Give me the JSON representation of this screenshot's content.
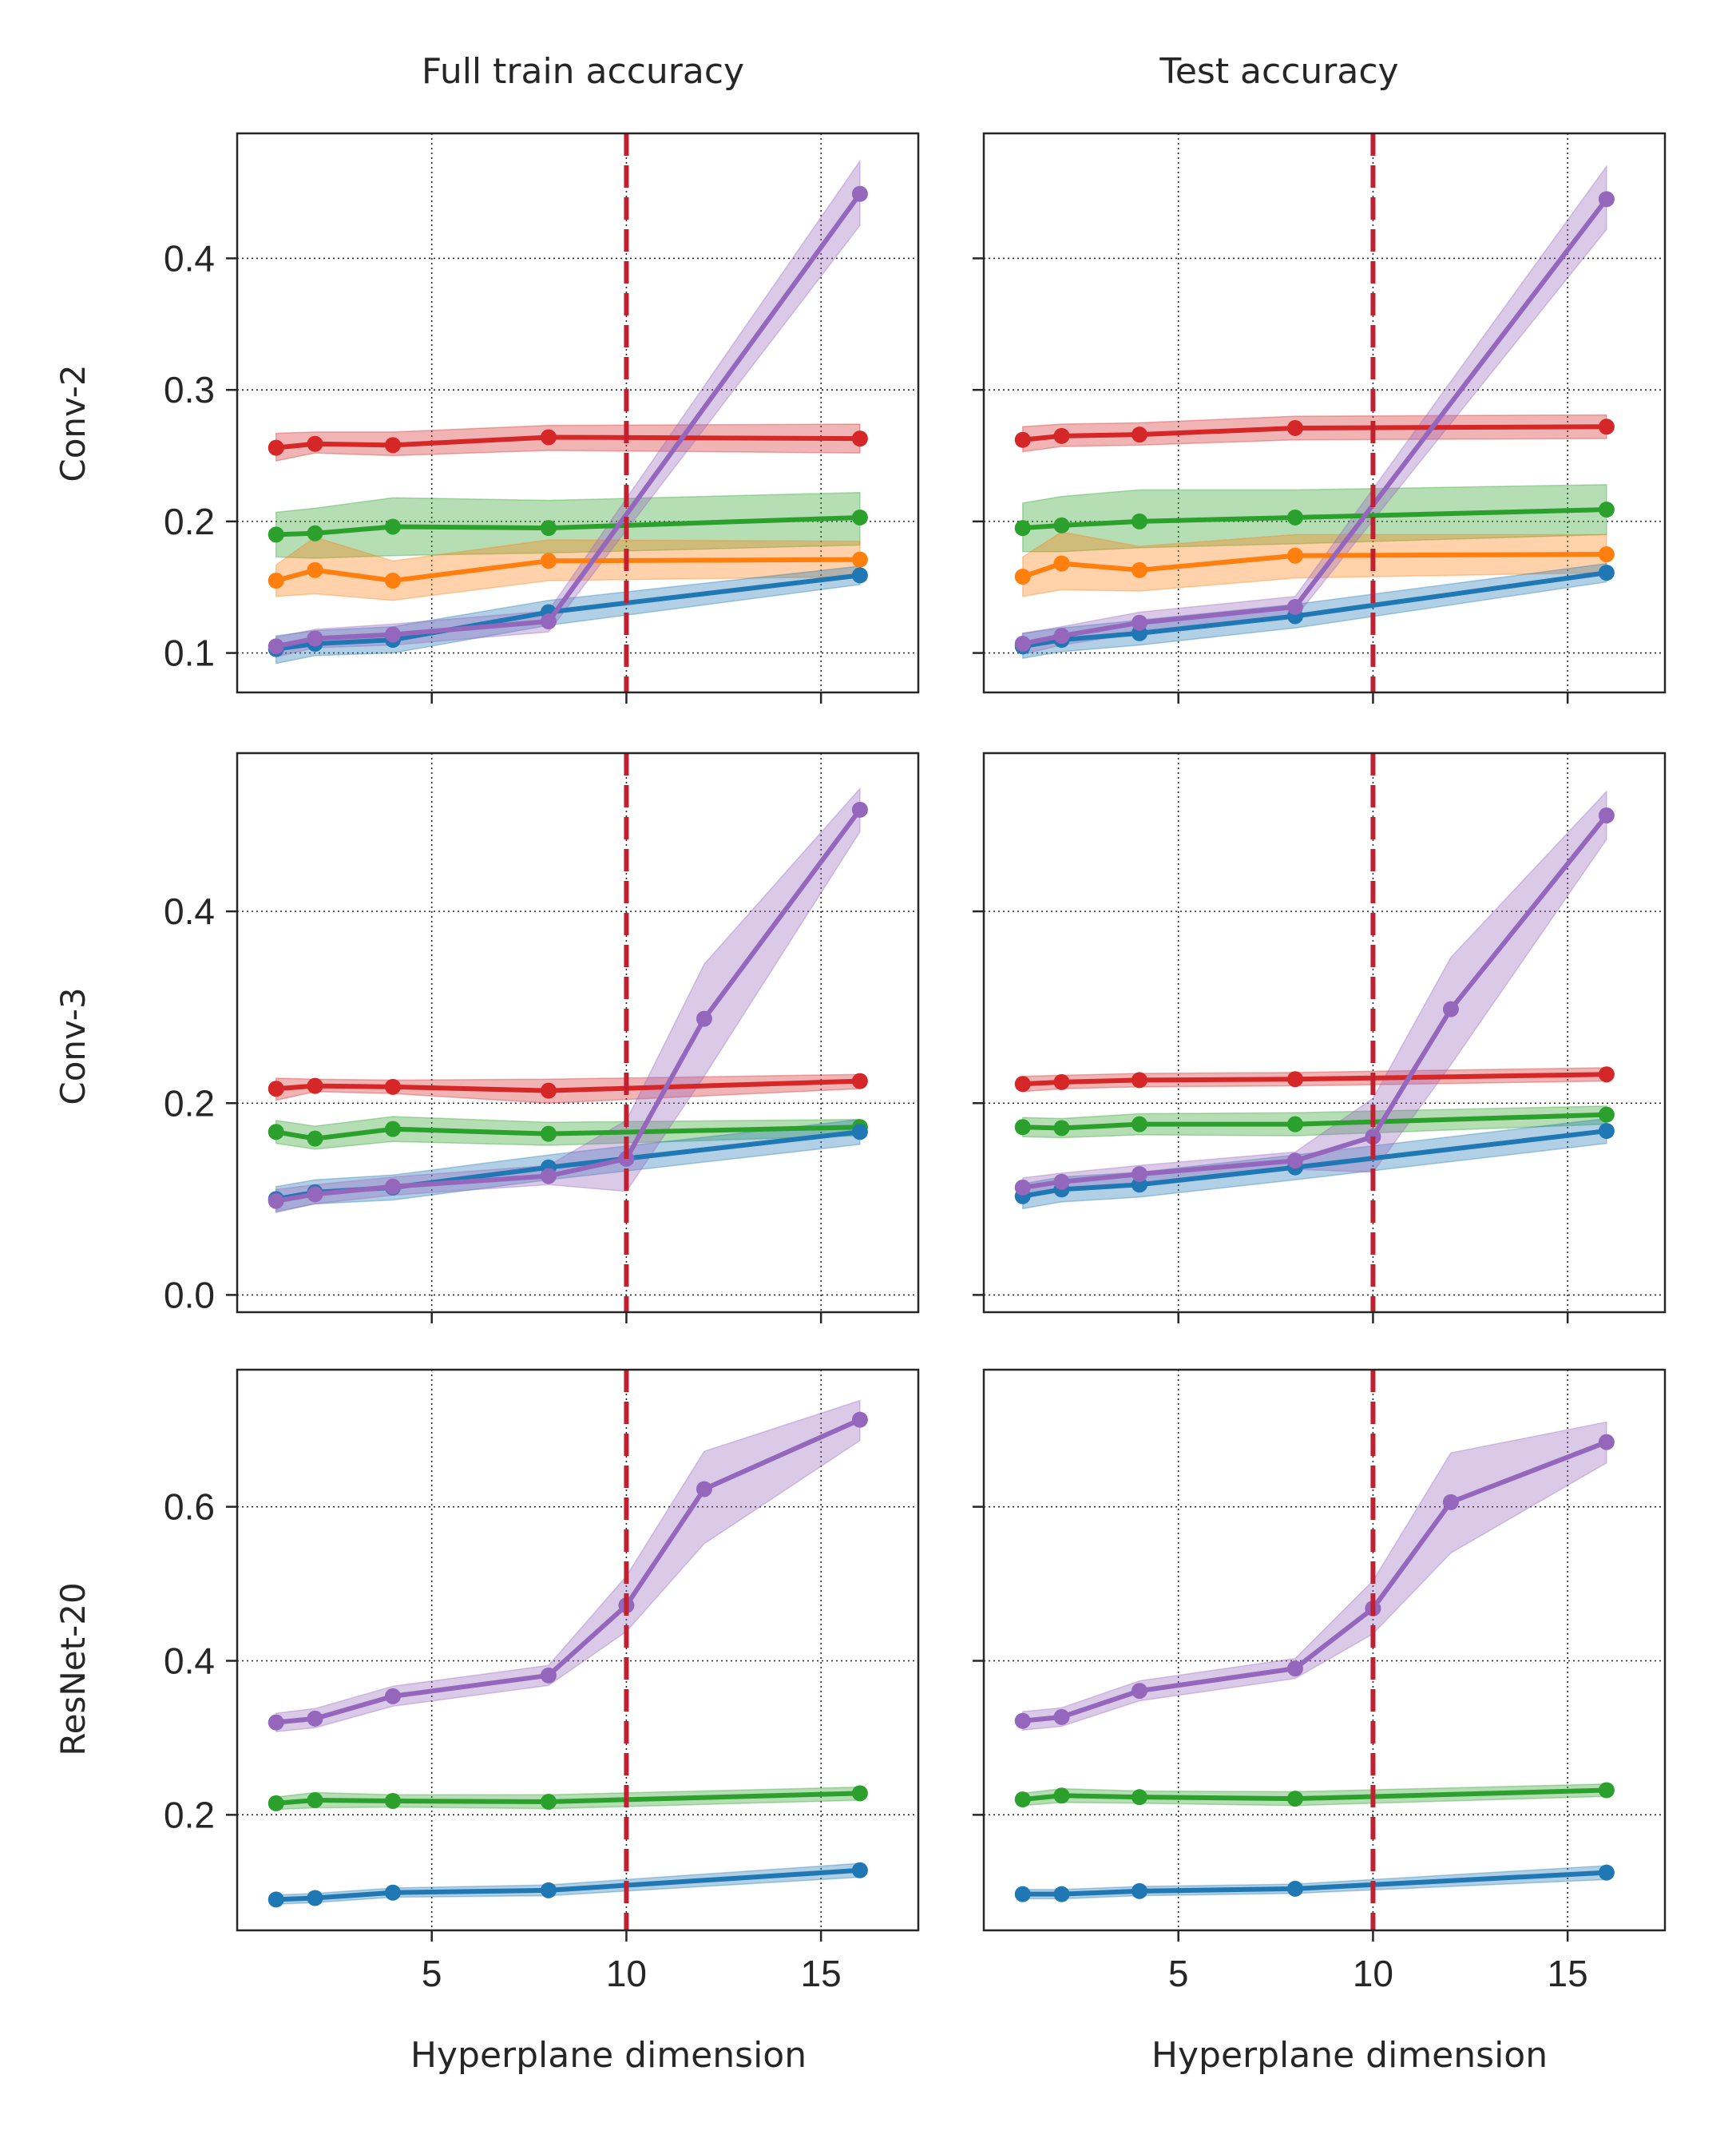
{
  "figure": {
    "column_titles": [
      "Full train accuracy",
      "Test accuracy"
    ],
    "row_labels": [
      "Conv-2",
      "Conv-3",
      "ResNet-20"
    ],
    "xlabel": "Hyperplane dimension",
    "vline_x": 10,
    "series_colors": {
      "red": "#d62728",
      "green": "#2ca02c",
      "orange": "#ff7f0e",
      "blue": "#1f77b4",
      "purple": "#9467bd",
      "vline": "#c0202f"
    }
  },
  "chart_data": [
    {
      "type": "line",
      "panel": "Conv-2 / Full train accuracy",
      "title": "Full train accuracy",
      "ylabel": "Conv-2",
      "xlabel": "",
      "xlim": [
        0,
        17.5
      ],
      "ylim": [
        0.07,
        0.495
      ],
      "xticks": [
        5,
        10,
        15
      ],
      "yticks": [
        0.1,
        0.2,
        0.3,
        0.4
      ],
      "ytick_labels": [
        "0.1",
        "0.2",
        "0.3",
        "0.4"
      ],
      "xtick_labels": [],
      "series": [
        {
          "name": "red",
          "color": "#d62728",
          "x": [
            1,
            2,
            4,
            8,
            16
          ],
          "y": [
            0.256,
            0.259,
            0.258,
            0.264,
            0.263
          ],
          "lower": [
            0.246,
            0.252,
            0.25,
            0.254,
            0.252
          ],
          "upper": [
            0.267,
            0.268,
            0.268,
            0.273,
            0.274
          ]
        },
        {
          "name": "green",
          "color": "#2ca02c",
          "x": [
            1,
            2,
            4,
            8,
            16
          ],
          "y": [
            0.19,
            0.191,
            0.196,
            0.195,
            0.203
          ],
          "lower": [
            0.173,
            0.172,
            0.174,
            0.176,
            0.182
          ],
          "upper": [
            0.207,
            0.21,
            0.218,
            0.216,
            0.222
          ]
        },
        {
          "name": "orange",
          "color": "#ff7f0e",
          "x": [
            1,
            2,
            4,
            8,
            16
          ],
          "y": [
            0.155,
            0.163,
            0.155,
            0.17,
            0.171
          ],
          "lower": [
            0.143,
            0.145,
            0.14,
            0.155,
            0.158
          ],
          "upper": [
            0.167,
            0.188,
            0.17,
            0.186,
            0.185
          ]
        },
        {
          "name": "blue",
          "color": "#1f77b4",
          "x": [
            1,
            2,
            4,
            8,
            16
          ],
          "y": [
            0.103,
            0.107,
            0.11,
            0.131,
            0.159
          ],
          "lower": [
            0.092,
            0.098,
            0.1,
            0.121,
            0.152
          ],
          "upper": [
            0.113,
            0.117,
            0.12,
            0.14,
            0.166
          ]
        },
        {
          "name": "purple",
          "color": "#9467bd",
          "x": [
            1,
            2,
            4,
            8,
            16
          ],
          "y": [
            0.105,
            0.111,
            0.114,
            0.124,
            0.449
          ],
          "lower": [
            0.097,
            0.104,
            0.106,
            0.116,
            0.425
          ],
          "upper": [
            0.112,
            0.118,
            0.122,
            0.132,
            0.474
          ]
        }
      ]
    },
    {
      "type": "line",
      "panel": "Conv-2 / Test accuracy",
      "title": "Test accuracy",
      "ylabel": "",
      "xlabel": "",
      "xlim": [
        0,
        17.5
      ],
      "ylim": [
        0.07,
        0.495
      ],
      "xticks": [
        5,
        10,
        15
      ],
      "yticks": [
        0.1,
        0.2,
        0.3,
        0.4
      ],
      "ytick_labels": [],
      "xtick_labels": [],
      "series": [
        {
          "name": "red",
          "color": "#d62728",
          "x": [
            1,
            2,
            4,
            8,
            16
          ],
          "y": [
            0.262,
            0.265,
            0.266,
            0.271,
            0.272
          ],
          "lower": [
            0.253,
            0.257,
            0.258,
            0.262,
            0.263
          ],
          "upper": [
            0.272,
            0.274,
            0.275,
            0.28,
            0.281
          ]
        },
        {
          "name": "green",
          "color": "#2ca02c",
          "x": [
            1,
            2,
            4,
            8,
            16
          ],
          "y": [
            0.195,
            0.197,
            0.2,
            0.203,
            0.209
          ],
          "lower": [
            0.177,
            0.177,
            0.18,
            0.183,
            0.19
          ],
          "upper": [
            0.214,
            0.219,
            0.224,
            0.224,
            0.228
          ]
        },
        {
          "name": "orange",
          "color": "#ff7f0e",
          "x": [
            1,
            2,
            4,
            8,
            16
          ],
          "y": [
            0.158,
            0.168,
            0.163,
            0.174,
            0.175
          ],
          "lower": [
            0.143,
            0.148,
            0.147,
            0.157,
            0.161
          ],
          "upper": [
            0.173,
            0.192,
            0.181,
            0.19,
            0.19
          ]
        },
        {
          "name": "blue",
          "color": "#1f77b4",
          "x": [
            1,
            2,
            4,
            8,
            16
          ],
          "y": [
            0.105,
            0.11,
            0.115,
            0.128,
            0.161
          ],
          "lower": [
            0.096,
            0.101,
            0.106,
            0.119,
            0.154
          ],
          "upper": [
            0.115,
            0.119,
            0.125,
            0.137,
            0.168
          ]
        },
        {
          "name": "purple",
          "color": "#9467bd",
          "x": [
            1,
            2,
            4,
            8,
            16
          ],
          "y": [
            0.107,
            0.113,
            0.123,
            0.135,
            0.445
          ],
          "lower": [
            0.099,
            0.106,
            0.115,
            0.127,
            0.422
          ],
          "upper": [
            0.115,
            0.12,
            0.131,
            0.143,
            0.47
          ]
        }
      ]
    },
    {
      "type": "line",
      "panel": "Conv-3 / Full train accuracy",
      "title": "",
      "ylabel": "Conv-3",
      "xlabel": "",
      "xlim": [
        0,
        17.5
      ],
      "ylim": [
        -0.018,
        0.565
      ],
      "xticks": [
        5,
        10,
        15
      ],
      "yticks": [
        0.0,
        0.2,
        0.4
      ],
      "ytick_labels": [
        "0.0",
        "0.2",
        "0.4"
      ],
      "xtick_labels": [],
      "series": [
        {
          "name": "red",
          "color": "#d62728",
          "x": [
            1,
            2,
            4,
            8,
            16
          ],
          "y": [
            0.215,
            0.218,
            0.217,
            0.213,
            0.223
          ],
          "lower": [
            0.203,
            0.212,
            0.21,
            0.2,
            0.215
          ],
          "upper": [
            0.226,
            0.225,
            0.224,
            0.225,
            0.23
          ]
        },
        {
          "name": "green",
          "color": "#2ca02c",
          "x": [
            1,
            2,
            4,
            8,
            16
          ],
          "y": [
            0.17,
            0.163,
            0.173,
            0.168,
            0.175
          ],
          "lower": [
            0.158,
            0.152,
            0.16,
            0.156,
            0.166
          ],
          "upper": [
            0.182,
            0.176,
            0.186,
            0.18,
            0.183
          ]
        },
        {
          "name": "blue",
          "color": "#1f77b4",
          "x": [
            1,
            2,
            4,
            8,
            16
          ],
          "y": [
            0.1,
            0.107,
            0.112,
            0.133,
            0.17
          ],
          "lower": [
            0.087,
            0.095,
            0.099,
            0.12,
            0.157
          ],
          "upper": [
            0.113,
            0.12,
            0.125,
            0.146,
            0.183
          ]
        },
        {
          "name": "purple",
          "color": "#9467bd",
          "x": [
            1,
            2,
            4,
            8,
            10,
            12,
            16
          ],
          "y": [
            0.098,
            0.105,
            0.113,
            0.124,
            0.142,
            0.288,
            0.506
          ],
          "lower": [
            0.086,
            0.095,
            0.104,
            0.115,
            0.108,
            0.228,
            0.483
          ],
          "upper": [
            0.11,
            0.115,
            0.123,
            0.135,
            0.182,
            0.345,
            0.528
          ]
        }
      ]
    },
    {
      "type": "line",
      "panel": "Conv-3 / Test accuracy",
      "title": "",
      "ylabel": "",
      "xlabel": "",
      "xlim": [
        0,
        17.5
      ],
      "ylim": [
        -0.018,
        0.565
      ],
      "xticks": [
        5,
        10,
        15
      ],
      "yticks": [
        0.0,
        0.2,
        0.4
      ],
      "ytick_labels": [],
      "xtick_labels": [],
      "series": [
        {
          "name": "red",
          "color": "#d62728",
          "x": [
            1,
            2,
            4,
            8,
            16
          ],
          "y": [
            0.22,
            0.222,
            0.224,
            0.225,
            0.23
          ],
          "lower": [
            0.212,
            0.215,
            0.217,
            0.218,
            0.223
          ],
          "upper": [
            0.228,
            0.229,
            0.231,
            0.232,
            0.237
          ]
        },
        {
          "name": "green",
          "color": "#2ca02c",
          "x": [
            1,
            2,
            4,
            8,
            16
          ],
          "y": [
            0.175,
            0.174,
            0.178,
            0.178,
            0.188
          ],
          "lower": [
            0.165,
            0.164,
            0.167,
            0.166,
            0.178
          ],
          "upper": [
            0.185,
            0.184,
            0.189,
            0.19,
            0.197
          ]
        },
        {
          "name": "blue",
          "color": "#1f77b4",
          "x": [
            1,
            2,
            4,
            8,
            16
          ],
          "y": [
            0.103,
            0.11,
            0.115,
            0.133,
            0.171
          ],
          "lower": [
            0.09,
            0.097,
            0.102,
            0.12,
            0.158
          ],
          "upper": [
            0.116,
            0.123,
            0.128,
            0.146,
            0.184
          ]
        },
        {
          "name": "purple",
          "color": "#9467bd",
          "x": [
            1,
            2,
            4,
            8,
            10,
            12,
            16
          ],
          "y": [
            0.112,
            0.118,
            0.126,
            0.14,
            0.165,
            0.298,
            0.5
          ],
          "lower": [
            0.102,
            0.109,
            0.117,
            0.131,
            0.128,
            0.24,
            0.475
          ],
          "upper": [
            0.122,
            0.127,
            0.135,
            0.149,
            0.205,
            0.352,
            0.525
          ]
        }
      ]
    },
    {
      "type": "line",
      "panel": "ResNet-20 / Full train accuracy",
      "title": "",
      "ylabel": "ResNet-20",
      "xlabel": "Hyperplane dimension",
      "xlim": [
        0,
        17.5
      ],
      "ylim": [
        0.05,
        0.778
      ],
      "xticks": [
        5,
        10,
        15
      ],
      "yticks": [
        0.2,
        0.4,
        0.6
      ],
      "ytick_labels": [
        "0.2",
        "0.4",
        "0.6"
      ],
      "xtick_labels": [
        "5",
        "10",
        "15"
      ],
      "series": [
        {
          "name": "purple",
          "color": "#9467bd",
          "x": [
            1,
            2,
            4,
            8,
            10,
            12,
            16
          ],
          "y": [
            0.32,
            0.325,
            0.354,
            0.381,
            0.472,
            0.623,
            0.713
          ],
          "lower": [
            0.308,
            0.313,
            0.341,
            0.368,
            0.438,
            0.552,
            0.686
          ],
          "upper": [
            0.332,
            0.338,
            0.367,
            0.394,
            0.51,
            0.672,
            0.738
          ]
        },
        {
          "name": "green",
          "color": "#2ca02c",
          "x": [
            1,
            2,
            4,
            8,
            16
          ],
          "y": [
            0.215,
            0.219,
            0.218,
            0.217,
            0.228
          ],
          "lower": [
            0.207,
            0.209,
            0.21,
            0.208,
            0.219
          ],
          "upper": [
            0.223,
            0.229,
            0.226,
            0.226,
            0.236
          ]
        },
        {
          "name": "blue",
          "color": "#1f77b4",
          "x": [
            1,
            2,
            4,
            8,
            16
          ],
          "y": [
            0.09,
            0.092,
            0.099,
            0.102,
            0.128
          ],
          "lower": [
            0.084,
            0.086,
            0.093,
            0.095,
            0.119
          ],
          "upper": [
            0.096,
            0.098,
            0.105,
            0.109,
            0.137
          ]
        }
      ]
    },
    {
      "type": "line",
      "panel": "ResNet-20 / Test accuracy",
      "title": "",
      "ylabel": "",
      "xlabel": "Hyperplane dimension",
      "xlim": [
        0,
        17.5
      ],
      "ylim": [
        0.05,
        0.778
      ],
      "xticks": [
        5,
        10,
        15
      ],
      "yticks": [
        0.2,
        0.4,
        0.6
      ],
      "ytick_labels": [],
      "xtick_labels": [
        "5",
        "10",
        "15"
      ],
      "series": [
        {
          "name": "purple",
          "color": "#9467bd",
          "x": [
            1,
            2,
            4,
            8,
            10,
            12,
            16
          ],
          "y": [
            0.322,
            0.327,
            0.361,
            0.39,
            0.468,
            0.606,
            0.684
          ],
          "lower": [
            0.31,
            0.315,
            0.348,
            0.377,
            0.435,
            0.54,
            0.657
          ],
          "upper": [
            0.334,
            0.339,
            0.374,
            0.403,
            0.504,
            0.67,
            0.71
          ]
        },
        {
          "name": "green",
          "color": "#2ca02c",
          "x": [
            1,
            2,
            4,
            8,
            16
          ],
          "y": [
            0.22,
            0.225,
            0.223,
            0.221,
            0.232
          ],
          "lower": [
            0.212,
            0.216,
            0.215,
            0.212,
            0.224
          ],
          "upper": [
            0.228,
            0.234,
            0.231,
            0.23,
            0.24
          ]
        },
        {
          "name": "blue",
          "color": "#1f77b4",
          "x": [
            1,
            2,
            4,
            8,
            16
          ],
          "y": [
            0.097,
            0.097,
            0.101,
            0.104,
            0.125
          ],
          "lower": [
            0.091,
            0.091,
            0.095,
            0.098,
            0.116
          ],
          "upper": [
            0.103,
            0.103,
            0.107,
            0.11,
            0.134
          ]
        }
      ]
    }
  ]
}
